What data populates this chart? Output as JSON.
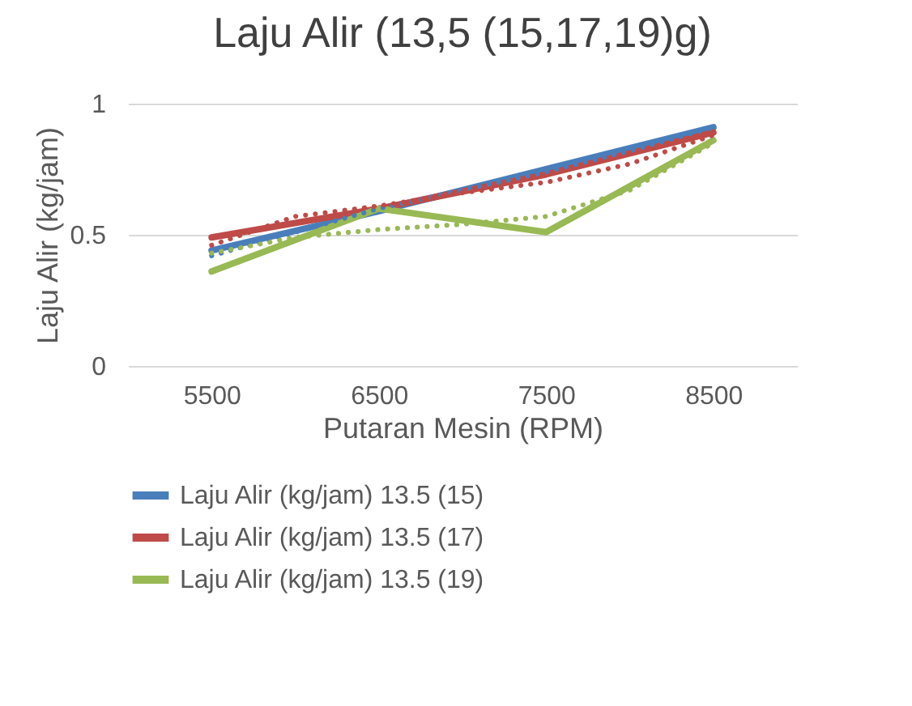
{
  "chart_data": {
    "type": "line",
    "title": "Laju Alir (13,5 (15,17,19)g)",
    "xlabel": "Putaran Mesin (RPM)",
    "ylabel": "Laju Alir (kg/jam)",
    "xlim": [
      5000,
      9000
    ],
    "xticks": [
      5500,
      6500,
      7500,
      8500
    ],
    "ylim": [
      0,
      1
    ],
    "yticks": [
      0,
      0.5,
      1
    ],
    "grid": "y",
    "legend": "bottom",
    "marker": "none",
    "series": [
      {
        "name": "Laju Alir (kg/jam) 13.5 (15)",
        "color": "#4a7ebb",
        "x": [
          5500,
          6500,
          7500,
          8500
        ],
        "values": [
          0.44,
          0.59,
          0.75,
          0.91
        ],
        "line_style": "solid"
      },
      {
        "name": "Laju Alir (kg/jam) 13.5 (17)",
        "color": "#be4b48",
        "x": [
          5500,
          6500,
          7500,
          8500
        ],
        "values": [
          0.49,
          0.6,
          0.73,
          0.89
        ],
        "line_style": "solid"
      },
      {
        "name": "Laju Alir (kg/jam) 13.5 (19)",
        "color": "#98b954",
        "x": [
          5500,
          6500,
          7500,
          8500
        ],
        "values": [
          0.36,
          0.6,
          0.51,
          0.86
        ],
        "line_style": "solid"
      },
      {
        "type": "line",
        "color": "#4a7ebb",
        "x": [
          5500,
          6000,
          6500,
          7000,
          7500,
          8000,
          8500
        ],
        "values": [
          0.42,
          0.51,
          0.6,
          0.67,
          0.74,
          0.82,
          0.91
        ],
        "line_style": "dotted"
      },
      {
        "type": "line",
        "color": "#be4b48",
        "x": [
          5500,
          6000,
          6500,
          7000,
          7500,
          8000,
          8500
        ],
        "values": [
          0.46,
          0.57,
          0.61,
          0.66,
          0.7,
          0.77,
          0.88
        ],
        "line_style": "dotted"
      },
      {
        "type": "line",
        "color": "#98b954",
        "x": [
          5500,
          6000,
          6500,
          7000,
          7500,
          8000,
          8500
        ],
        "values": [
          0.43,
          0.49,
          0.52,
          0.54,
          0.57,
          0.67,
          0.85
        ],
        "line_style": "dotted"
      }
    ]
  }
}
